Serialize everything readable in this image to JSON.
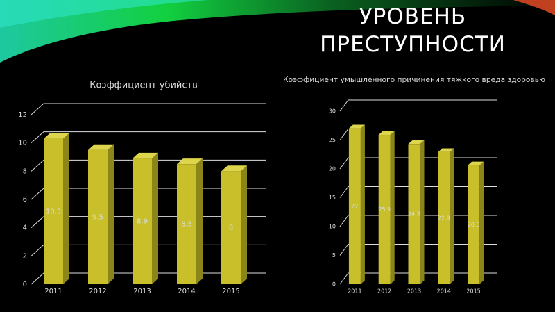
{
  "title": "УРОВЕНЬ ПРЕСТУПНОСТИ",
  "chart_data": [
    {
      "type": "bar3d",
      "title": "Коэффициент убийств",
      "categories": [
        "2011",
        "2012",
        "2013",
        "2014",
        "2015"
      ],
      "values": [
        10.3,
        9.5,
        8.9,
        8.5,
        8
      ],
      "color": "#c8bf2a",
      "ylim": [
        0,
        12
      ],
      "yticks": [
        0,
        2,
        4,
        6,
        8,
        10,
        12
      ],
      "grid": true
    },
    {
      "type": "bar3d",
      "title": "Коэффициент умышленного причинения тяжкого вреда здоровью",
      "categories": [
        "2011",
        "2012",
        "2013",
        "2014",
        "2015"
      ],
      "values": [
        27,
        25.9,
        24.3,
        22.9,
        20.6
      ],
      "color": "#c8bf2a",
      "ylim": [
        0,
        30
      ],
      "yticks": [
        0,
        5,
        10,
        15,
        20,
        25,
        30
      ],
      "grid": true
    }
  ]
}
